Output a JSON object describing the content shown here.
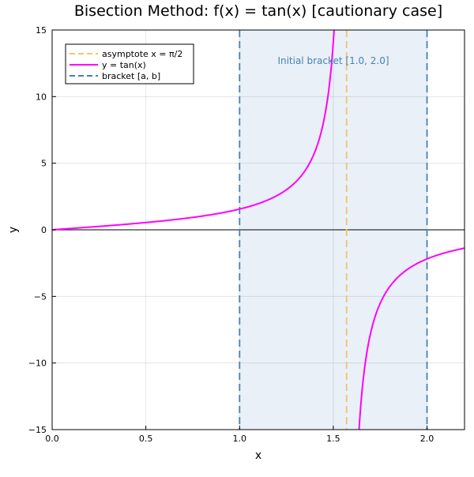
{
  "chart_data": {
    "type": "line",
    "title": "Bisection Method: f(x) = tan(x)  [cautionary case]",
    "xlabel": "x",
    "ylabel": "y",
    "xlim": [
      0.0,
      2.2
    ],
    "ylim": [
      -15,
      15
    ],
    "x_ticks": [
      0.0,
      0.5,
      1.0,
      1.5,
      2.0
    ],
    "x_tick_labels": [
      "0.0",
      "0.5",
      "1.0",
      "1.5",
      "2.0"
    ],
    "y_ticks": [
      -15,
      -10,
      -5,
      0,
      5,
      10,
      15
    ],
    "y_tick_labels": [
      "−15",
      "−10",
      "−5",
      "0",
      "5",
      "10",
      "15"
    ],
    "grid": true,
    "legend_position": "top-left",
    "bracket": {
      "a": 1.0,
      "b": 2.0
    },
    "asymptote_x": 1.5708,
    "annotation": "Initial bracket [1.0, 2.0]",
    "series": [
      {
        "name": "asymptote x = π/2",
        "style": "dashed",
        "color": "#f2c46a",
        "kind": "vline"
      },
      {
        "name": "y = tan(x)",
        "style": "solid",
        "color": "#ff00ff",
        "kind": "function",
        "x": [
          0.0,
          0.2,
          0.4,
          0.6,
          0.8,
          1.0,
          1.1,
          1.2,
          1.3,
          1.4,
          1.45,
          1.5,
          1.504,
          1.637,
          1.65,
          1.7,
          1.8,
          1.9,
          2.0,
          2.1,
          2.2
        ],
        "y": [
          0.0,
          0.2,
          0.42,
          0.68,
          1.03,
          1.56,
          1.96,
          2.57,
          3.6,
          5.8,
          8.24,
          14.1,
          15.0,
          -15.0,
          -12.6,
          -7.7,
          -4.29,
          -2.93,
          -2.19,
          -1.71,
          -1.37
        ]
      },
      {
        "name": "bracket [a, b]",
        "style": "dashed",
        "color": "#4682b4",
        "kind": "vlines"
      }
    ],
    "colors": {
      "bracket_fill": "#e9f0f7",
      "bracket_line": "#4682b4",
      "asymptote": "#f2c46a",
      "curve": "#ff00ff",
      "annotation": "#4682b4"
    }
  }
}
